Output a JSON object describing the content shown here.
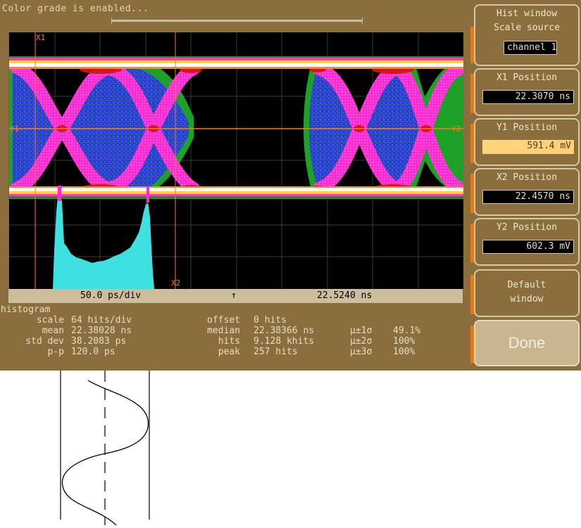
{
  "status": {
    "message": "Color grade is enabled..."
  },
  "display": {
    "marker_x1": "X1",
    "marker_x2": "X2",
    "marker_y1": "Y1",
    "marker_y2": "Y2"
  },
  "scale_bar": {
    "timebase": "50.0 ps/div",
    "delay_arrow": "↑",
    "position": "22.5240 ns"
  },
  "stats": {
    "section_title": "histogram",
    "rows": [
      {
        "label": "scale",
        "value": "64 hits/div",
        "label2": "offset",
        "value2": "0 hits",
        "sigma": "",
        "pct": ""
      },
      {
        "label": "mean",
        "value": "22.38028 ns",
        "label2": "median",
        "value2": "22.38366 ns",
        "sigma": "μ±1σ",
        "pct": "49.1%"
      },
      {
        "label": "std dev",
        "value": "38.2083 ps",
        "label2": "hits",
        "value2": "9.128 khits",
        "sigma": "μ±2σ",
        "pct": "100%"
      },
      {
        "label": "p-p",
        "value": "120.0 ps",
        "label2": "peak",
        "value2": "257 hits",
        "sigma": "μ±3σ",
        "pct": "100%"
      }
    ]
  },
  "panel": {
    "title": "Hist window",
    "scale_source_label": "Scale source",
    "scale_source_value": "channel 1",
    "x1_label": "X1 Position",
    "x1_value": "22.3070 ns",
    "y1_label": "Y1 Position",
    "y1_value": "591.4 mV",
    "x2_label": "X2 Position",
    "x2_value": "22.4570 ns",
    "y2_label": "Y2 Position",
    "y2_value": "602.3 mV",
    "default_line1": "Default",
    "default_line2": "window",
    "done_label": "Done"
  },
  "colors": {
    "bezel": "#8a6e3e",
    "highlight": "#ffd27a",
    "histogram": "#3fe0e0",
    "marker": "#ff7a1a"
  }
}
